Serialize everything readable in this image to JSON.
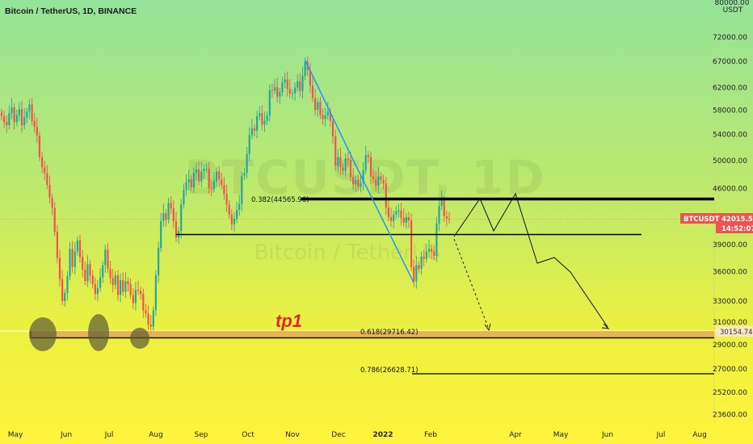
{
  "header": {
    "title": "Bitcoin / TetherUS, 1D, BINANCE"
  },
  "watermark": {
    "symbol": "BTCUSDT, 1D",
    "name": "Bitcoin / TetherUS"
  },
  "colors": {
    "bg_top": "#94e39a",
    "bg_bottom": "#fff33d",
    "up": "#26a69a",
    "down": "#ef5350",
    "price_tag": "#ef5350",
    "zone": "#e5a55a",
    "tp_text": "#e02a2a",
    "trend_line": "#2196f3"
  },
  "annotations": {
    "tp1": "tp1",
    "fib_0382": "0.382(44565.96)",
    "fib_0618": "0.618(29716.42)",
    "fib_0786": "0.786(26628.71)"
  },
  "price_tags": {
    "symbol": "BTCUSDT",
    "price": "42015.58",
    "countdown": "14:52:07",
    "zone_price": "30154.74",
    "top_tick": "80000.00"
  },
  "chart_data": {
    "type": "candlestick",
    "symbol": "BTCUSDT",
    "timeframe": "1D",
    "exchange": "BINANCE",
    "y_scale": "log",
    "ylim": [
      22000,
      80000
    ],
    "yaxis_unit": "USDT",
    "y_ticks": [
      23600,
      25200,
      27000,
      29000,
      31000,
      33000,
      36000,
      39000,
      42000,
      46000,
      50000,
      54000,
      58000,
      62000,
      67000,
      72000
    ],
    "x_ticks": [
      "May",
      "Jun",
      "Jul",
      "Aug",
      "Sep",
      "Oct",
      "Nov",
      "Dec",
      "2022",
      "Feb",
      "Apr",
      "May",
      "Jun",
      "Jul",
      "Aug"
    ],
    "last_price": 42015.58,
    "horizontal_levels": [
      {
        "label": "0.382(44565.96)",
        "value": 44565.96
      },
      {
        "label": "",
        "value": 40500
      },
      {
        "label": "0.618(29716.42)",
        "value": 29716.42
      },
      {
        "label": "0.786(26628.71)",
        "value": 26628.71
      },
      {
        "label": "",
        "value": 30154.74
      }
    ],
    "projection_solid": [
      [
        "Feb",
        40500
      ],
      [
        "Feb-Mar",
        45000
      ],
      [
        "Mar",
        41500
      ],
      [
        "Apr",
        45200
      ],
      [
        "Apr-May",
        37000
      ],
      [
        "May",
        37500
      ],
      [
        "May-Jun",
        35200
      ],
      [
        "Jun",
        30000
      ]
    ],
    "projection_dashed": [
      [
        "Feb",
        42000
      ],
      [
        "Mar",
        30000
      ]
    ],
    "ohlc_closes": [
      57000,
      56000,
      55500,
      57500,
      58500,
      56000,
      57200,
      58200,
      55500,
      56800,
      57800,
      59000,
      56200,
      55200,
      53800,
      50500,
      49000,
      48200,
      46500,
      44800,
      43500,
      40500,
      37500,
      35200,
      33000,
      33800,
      35500,
      38500,
      36500,
      38200,
      39500,
      37600,
      36200,
      35000,
      36800,
      35600,
      34700,
      33700,
      34300,
      35400,
      36700,
      38400,
      36300,
      35300,
      34600,
      35600,
      33600,
      35100,
      33900,
      35000,
      34700,
      33600,
      32800,
      34100,
      34000,
      33700,
      32100,
      31800,
      30800,
      30600,
      32100,
      35600,
      38600,
      41800,
      42800,
      42000,
      44100,
      43400,
      41800,
      39800,
      40600,
      43900,
      45800,
      46900,
      47300,
      46200,
      48200,
      48700,
      47000,
      48400,
      48800,
      48800,
      46100,
      46000,
      47000,
      48400,
      47300,
      46500,
      45300,
      43900,
      42600,
      41400,
      42100,
      43200,
      44000,
      47800,
      48200,
      51000,
      53900,
      55000,
      54600,
      57000,
      57500,
      55600,
      56200,
      57100,
      61600,
      61500,
      62100,
      60400,
      61200,
      63000,
      63500,
      61800,
      60900,
      61000,
      62000,
      63200,
      61400,
      64200,
      66900,
      65300,
      62400,
      60100,
      58100,
      59400,
      57200,
      56500,
      57100,
      57800,
      56200,
      53700,
      49200,
      50500,
      49000,
      48500,
      50300,
      50100,
      47600,
      46600,
      47200,
      46300,
      46800,
      48600,
      50800,
      50500,
      47700,
      47300,
      46400,
      47700,
      47200,
      46700,
      43500,
      42300,
      41800,
      42600,
      43000,
      43100,
      42200,
      41600,
      42300,
      41900,
      36500,
      35000,
      36700,
      36300,
      37600,
      37400,
      38200,
      38500,
      38200,
      37700,
      41500,
      43700,
      44500,
      42400,
      42100,
      42000
    ]
  }
}
